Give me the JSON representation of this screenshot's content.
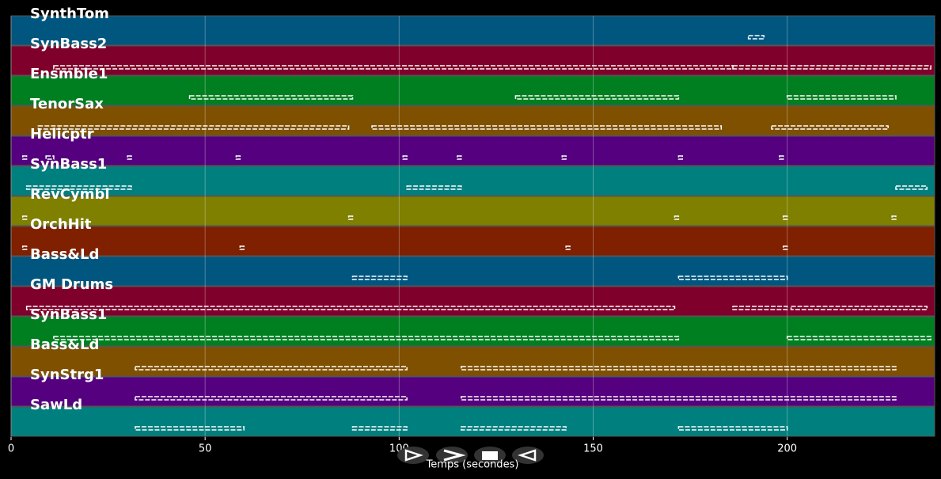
{
  "chart_data": {
    "type": "timeline",
    "xlabel": "Temps (secondes)",
    "xlim": [
      0,
      238
    ],
    "xticks": [
      0,
      50,
      100,
      150,
      200
    ],
    "grid": true,
    "tracks": [
      {
        "name": "SynthTom",
        "color": "#00567f",
        "segments": [
          [
            190,
            194
          ]
        ]
      },
      {
        "name": "SynBass2",
        "color": "#7f002a",
        "segments": [
          [
            11,
            186
          ],
          [
            186,
            200
          ],
          [
            201,
            237
          ]
        ]
      },
      {
        "name": "Ensmble1",
        "color": "#007f20",
        "segments": [
          [
            46,
            88
          ],
          [
            130,
            172
          ],
          [
            200,
            228
          ]
        ]
      },
      {
        "name": "TenorSax",
        "color": "#7f5000",
        "segments": [
          [
            7,
            87
          ],
          [
            93,
            183
          ],
          [
            196,
            226
          ]
        ]
      },
      {
        "name": "Helicptr",
        "color": "#55007f",
        "segments": [
          [
            3,
            4
          ],
          [
            9,
            11
          ],
          [
            30,
            31
          ],
          [
            58,
            59
          ],
          [
            101,
            102
          ],
          [
            115,
            116
          ],
          [
            142,
            143
          ],
          [
            172,
            173
          ],
          [
            198,
            199
          ]
        ]
      },
      {
        "name": "SynBass1",
        "color": "#007f7f",
        "segments": [
          [
            4,
            31
          ],
          [
            102,
            116
          ],
          [
            228,
            236
          ]
        ]
      },
      {
        "name": "RevCymbl",
        "color": "#7f7f00",
        "segments": [
          [
            3,
            4
          ],
          [
            87,
            88
          ],
          [
            171,
            172
          ],
          [
            199,
            200
          ],
          [
            227,
            228
          ]
        ]
      },
      {
        "name": "OrchHit",
        "color": "#7f2000",
        "segments": [
          [
            3,
            4
          ],
          [
            59,
            60
          ],
          [
            143,
            144
          ],
          [
            199,
            200
          ]
        ]
      },
      {
        "name": "Bass&Ld",
        "color": "#00567f",
        "segments": [
          [
            88,
            102
          ],
          [
            172,
            200
          ]
        ]
      },
      {
        "name": "GM Drums",
        "color": "#7f002a",
        "segments": [
          [
            4,
            171
          ],
          [
            186,
            200
          ],
          [
            201,
            236
          ]
        ]
      },
      {
        "name": "SynBass1",
        "color": "#007f20",
        "segments": [
          [
            11,
            172
          ],
          [
            200,
            237
          ]
        ]
      },
      {
        "name": "Bass&Ld",
        "color": "#7f5000",
        "segments": [
          [
            32,
            102
          ],
          [
            116,
            228
          ]
        ]
      },
      {
        "name": "SynStrg1",
        "color": "#55007f",
        "segments": [
          [
            32,
            102
          ],
          [
            116,
            228
          ]
        ]
      },
      {
        "name": "SawLd",
        "color": "#007f7f",
        "segments": [
          [
            32,
            60
          ],
          [
            88,
            102
          ],
          [
            116,
            143
          ],
          [
            172,
            200
          ]
        ]
      }
    ]
  }
}
